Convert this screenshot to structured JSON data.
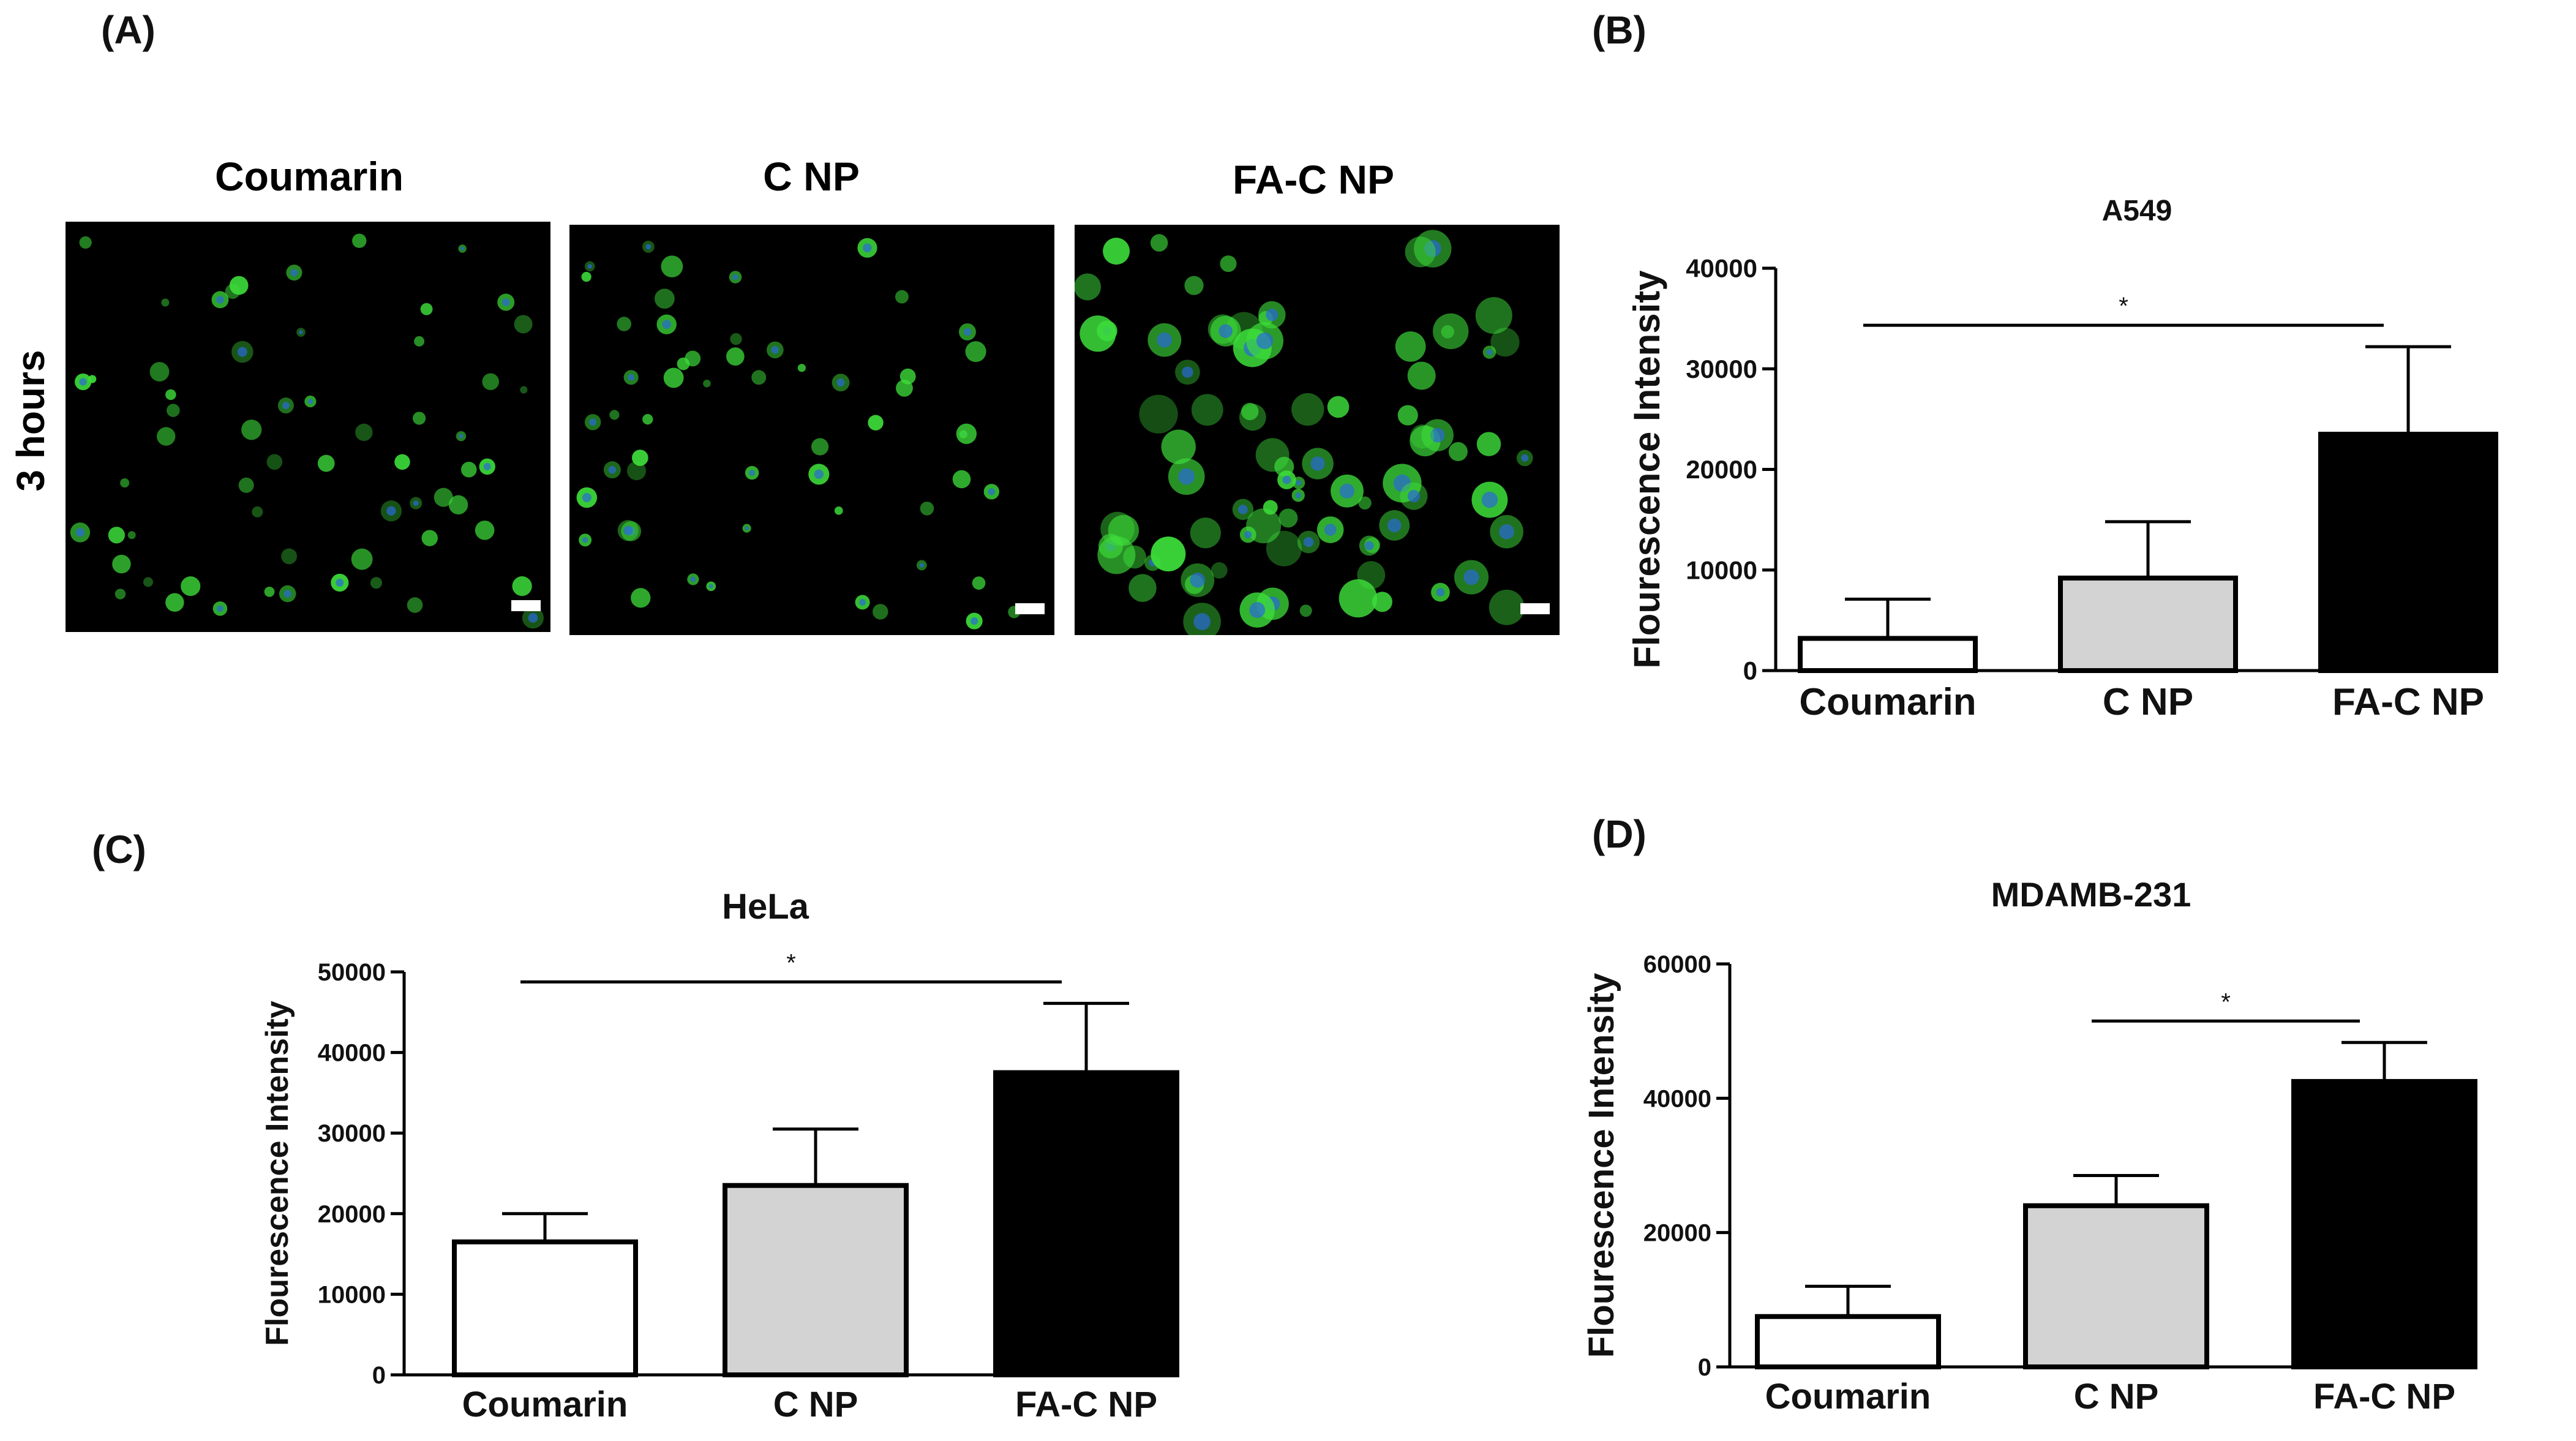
{
  "panels": {
    "a": "(A)",
    "b": "(B)",
    "c": "(C)",
    "d": "(D)"
  },
  "microscopy": {
    "row_label": "3 hours",
    "columns": [
      "Coumarin",
      "C NP",
      "FA-C NP"
    ],
    "colors": {
      "background": "#000000",
      "cell": "#3ddc3a",
      "nucleus": "#2a6ad8",
      "scale_bar": "#ffffff"
    }
  },
  "chart_data": [
    {
      "type": "bar",
      "id": "B",
      "title": "A549",
      "ylabel": "Flourescence Intensity",
      "xlabel": "",
      "categories": [
        "Coumarin",
        "C NP",
        "FA-C NP"
      ],
      "values": [
        3200,
        9200,
        23500
      ],
      "errors": [
        3900,
        5600,
        8700
      ],
      "ylim": [
        0,
        40000
      ],
      "yticks": [
        0,
        10000,
        20000,
        30000,
        40000
      ],
      "ytick_labels": [
        "0",
        "10000",
        "20000",
        "30000",
        "40000"
      ],
      "bar_colors": [
        "#ffffff",
        "#d3d3d3",
        "#000000"
      ],
      "significance": [
        {
          "from": 0,
          "to": 2,
          "label": "*"
        }
      ],
      "grid": false
    },
    {
      "type": "bar",
      "id": "C",
      "title": "HeLa",
      "ylabel": "Flourescence Intensity",
      "xlabel": "",
      "categories": [
        "Coumarin",
        "C NP",
        "FA-C NP"
      ],
      "values": [
        16500,
        23500,
        37500
      ],
      "errors": [
        3500,
        7000,
        8600
      ],
      "ylim": [
        0,
        50000
      ],
      "yticks": [
        0,
        10000,
        20000,
        30000,
        40000,
        50000
      ],
      "ytick_labels": [
        "0",
        "10000",
        "20000",
        "30000",
        "40000",
        "50000"
      ],
      "bar_colors": [
        "#ffffff",
        "#d3d3d3",
        "#000000"
      ],
      "significance": [
        {
          "from": 0,
          "to": 2,
          "label": "*"
        }
      ],
      "grid": false
    },
    {
      "type": "bar",
      "id": "D",
      "title": "MDAMB-231",
      "ylabel": "Flourescence Intensity",
      "xlabel": "",
      "categories": [
        "Coumarin",
        "C NP",
        "FA-C NP"
      ],
      "values": [
        7500,
        24000,
        42500
      ],
      "errors": [
        4500,
        4500,
        5800
      ],
      "ylim": [
        0,
        60000
      ],
      "yticks": [
        0,
        20000,
        40000,
        60000
      ],
      "ytick_labels": [
        "0",
        "20000",
        "40000",
        "60000"
      ],
      "bar_colors": [
        "#ffffff",
        "#d3d3d3",
        "#000000"
      ],
      "significance": [
        {
          "from": 1,
          "to": 2,
          "label": "*"
        }
      ],
      "grid": false
    }
  ]
}
